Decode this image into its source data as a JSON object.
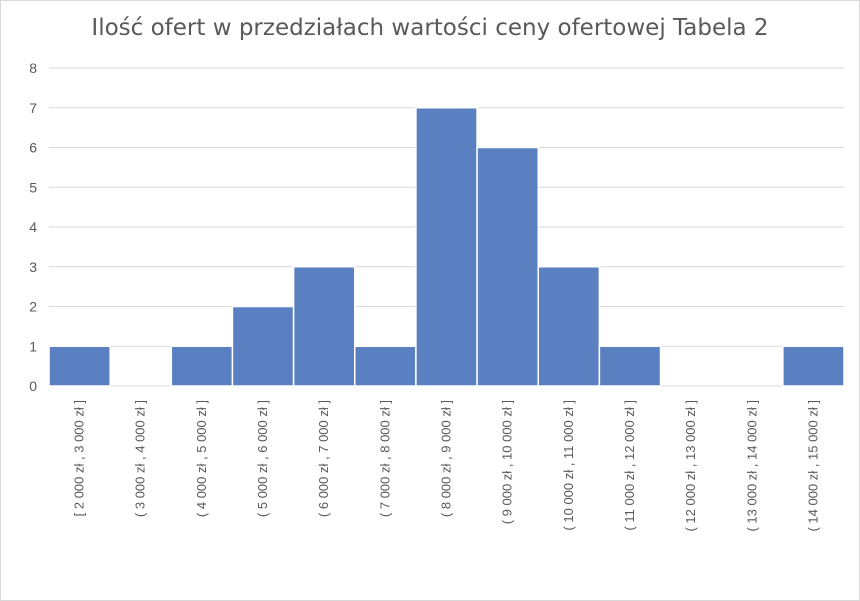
{
  "chart_data": {
    "type": "bar",
    "title": "Ilość ofert w przedziałach wartości ceny ofertowej Tabela 2",
    "xlabel": "",
    "ylabel": "",
    "ylim": [
      0,
      8
    ],
    "yticks": [
      0,
      1,
      2,
      3,
      4,
      5,
      6,
      7,
      8
    ],
    "grid": true,
    "legend": "none",
    "color": "#5b80c2",
    "categories": [
      "[ 2 000 zł ,  3 000 zł ]",
      "( 3 000 zł ,  4 000 zł ]",
      "( 4 000 zł ,  5 000 zł ]",
      "( 5 000 zł ,  6 000 zł ]",
      "( 6 000 zł ,  7 000 zł ]",
      "( 7 000 zł ,  8 000 zł ]",
      "( 8 000 zł ,  9 000 zł ]",
      "( 9 000 zł ,  10 000 zł ]",
      "( 10 000 zł ,  11 000 zł ]",
      "( 11 000 zł ,  12 000 zł ]",
      "( 12 000 zł ,  13 000 zł ]",
      "( 13 000 zł ,  14 000 zł ]",
      "( 14 000 zł ,  15 000 zł ]"
    ],
    "values": [
      1,
      0,
      1,
      2,
      3,
      1,
      7,
      6,
      3,
      1,
      0,
      0,
      1
    ]
  }
}
